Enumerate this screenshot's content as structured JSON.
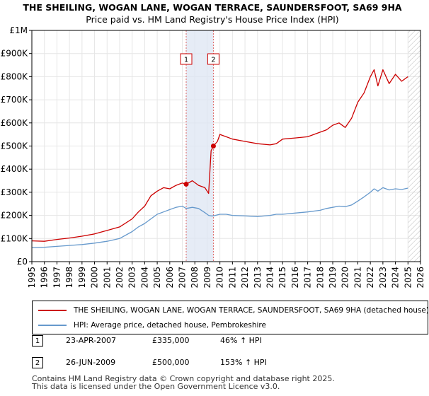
{
  "title": "THE SHEILING, WOGAN LANE, WOGAN TERRACE, SAUNDERSFOOT, SA69 9HA",
  "subtitle": "Price paid vs. HM Land Registry's House Price Index (HPI)",
  "chart_data": {
    "type": "line",
    "xlim": [
      1995,
      2026
    ],
    "ylim": [
      0,
      1000000
    ],
    "y_ticks": [
      0,
      100000,
      200000,
      300000,
      400000,
      500000,
      600000,
      700000,
      800000,
      900000,
      1000000
    ],
    "y_tick_labels": [
      "£0",
      "£100K",
      "£200K",
      "£300K",
      "£400K",
      "£500K",
      "£600K",
      "£700K",
      "£800K",
      "£900K",
      "£1M"
    ],
    "x_ticks": [
      1995,
      1996,
      1997,
      1998,
      1999,
      2000,
      2001,
      2002,
      2003,
      2004,
      2005,
      2006,
      2007,
      2008,
      2009,
      2010,
      2011,
      2012,
      2013,
      2014,
      2015,
      2016,
      2017,
      2018,
      2019,
      2020,
      2021,
      2022,
      2023,
      2024,
      2025,
      2026
    ],
    "x_tick_labels": [
      "1995",
      "1996",
      "1997",
      "1998",
      "1999",
      "2000",
      "2001",
      "2002",
      "2003",
      "2004",
      "2005",
      "2006",
      "2007",
      "2008",
      "2009",
      "2010",
      "2011",
      "2012",
      "2013",
      "2014",
      "2015",
      "2016",
      "2017",
      "2018",
      "2019",
      "2020",
      "2021",
      "2022",
      "2023",
      "2024",
      "2025",
      "2026"
    ],
    "highlight_span": [
      2007.31,
      2009.48
    ],
    "future_hatch_from": 2025.0,
    "series": [
      {
        "name": "THE SHEILING, WOGAN LANE, WOGAN TERRACE, SAUNDERSFOOT, SA69 9HA (detached house)",
        "color": "#cc0000",
        "x": [
          1995.0,
          1996.0,
          1997.0,
          1998.0,
          1999.0,
          2000.0,
          2001.0,
          2002.0,
          2003.0,
          2003.5,
          2004.0,
          2004.5,
          2005.0,
          2005.5,
          2006.0,
          2006.5,
          2007.0,
          2007.31,
          2007.8,
          2008.3,
          2008.8,
          2009.1,
          2009.3,
          2009.48,
          2009.8,
          2010.0,
          2010.5,
          2011.0,
          2012.0,
          2013.0,
          2014.0,
          2014.5,
          2015.0,
          2016.0,
          2017.0,
          2018.0,
          2018.5,
          2019.0,
          2019.5,
          2020.0,
          2020.5,
          2021.0,
          2021.5,
          2022.0,
          2022.3,
          2022.6,
          2023.0,
          2023.5,
          2024.0,
          2024.5,
          2025.0
        ],
        "y": [
          90000,
          88000,
          96000,
          102000,
          110000,
          120000,
          135000,
          150000,
          185000,
          215000,
          240000,
          285000,
          305000,
          320000,
          315000,
          330000,
          340000,
          335000,
          350000,
          330000,
          320000,
          295000,
          480000,
          500000,
          520000,
          550000,
          540000,
          530000,
          520000,
          510000,
          505000,
          510000,
          530000,
          535000,
          540000,
          560000,
          570000,
          590000,
          600000,
          580000,
          620000,
          690000,
          730000,
          800000,
          830000,
          760000,
          830000,
          770000,
          810000,
          780000,
          800000
        ]
      },
      {
        "name": "HPI: Average price, detached house, Pembrokeshire",
        "color": "#6699cc",
        "x": [
          1995.0,
          1996.0,
          1997.0,
          1998.0,
          1999.0,
          2000.0,
          2001.0,
          2002.0,
          2003.0,
          2003.5,
          2004.0,
          2004.5,
          2005.0,
          2005.5,
          2006.0,
          2006.5,
          2007.0,
          2007.31,
          2007.8,
          2008.3,
          2008.8,
          2009.1,
          2009.3,
          2009.48,
          2009.8,
          2010.0,
          2010.5,
          2011.0,
          2012.0,
          2013.0,
          2014.0,
          2014.5,
          2015.0,
          2016.0,
          2017.0,
          2018.0,
          2018.5,
          2019.0,
          2019.5,
          2020.0,
          2020.5,
          2021.0,
          2021.5,
          2022.0,
          2022.3,
          2022.6,
          2023.0,
          2023.5,
          2024.0,
          2024.5,
          2025.0
        ],
        "y": [
          60000,
          62000,
          66000,
          70000,
          74000,
          80000,
          88000,
          100000,
          130000,
          150000,
          165000,
          185000,
          205000,
          215000,
          225000,
          235000,
          240000,
          230000,
          235000,
          230000,
          212000,
          200000,
          198000,
          198000,
          202000,
          205000,
          205000,
          200000,
          198000,
          195000,
          200000,
          205000,
          205000,
          210000,
          215000,
          222000,
          230000,
          235000,
          240000,
          238000,
          245000,
          262000,
          280000,
          300000,
          315000,
          305000,
          320000,
          310000,
          315000,
          312000,
          318000
        ]
      }
    ],
    "sales": [
      {
        "label": "1",
        "x": 2007.31,
        "y": 335000
      },
      {
        "label": "2",
        "x": 2009.48,
        "y": 500000
      }
    ]
  },
  "legend": {
    "property": "THE SHEILING, WOGAN LANE, WOGAN TERRACE, SAUNDERSFOOT, SA69 9HA (detached house)",
    "hpi": "HPI: Average price, detached house, Pembrokeshire"
  },
  "transactions": [
    {
      "label": "1",
      "date": "23-APR-2007",
      "price": "£335,000",
      "hpi": "46% ↑ HPI"
    },
    {
      "label": "2",
      "date": "26-JUN-2009",
      "price": "£500,000",
      "hpi": "153% ↑ HPI"
    }
  ],
  "footer": {
    "line1": "Contains HM Land Registry data © Crown copyright and database right 2025.",
    "line2": "This data is licensed under the Open Government Licence v3.0."
  }
}
